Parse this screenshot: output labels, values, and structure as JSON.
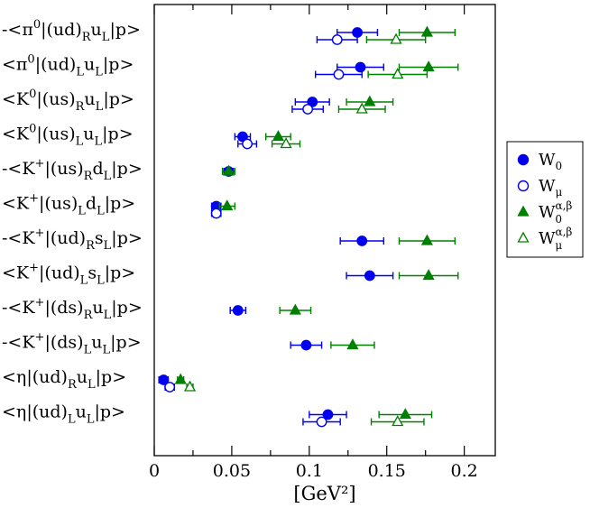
{
  "chart_data": {
    "type": "scatter",
    "title": "",
    "xlabel": "[GeV²]",
    "ylabel": "",
    "xlim": [
      0,
      0.22
    ],
    "x_ticks": [
      0,
      0.05,
      0.1,
      0.15,
      0.2
    ],
    "x_tick_labels": [
      "0",
      "0.05",
      "0.1",
      "0.15",
      "0.2"
    ],
    "legend_position": "right",
    "grid": false,
    "colors": {
      "W0": "#0000ee",
      "Wmu": "#0000ee",
      "W0ab": "#008000",
      "Wmuab": "#008000"
    },
    "rows": [
      {
        "pre": "-<π",
        "sup": "0",
        "mid": "|(ud)",
        "sub": "R",
        "q": "u",
        "qsub": "L",
        "post": "|p>"
      },
      {
        "pre": "<π",
        "sup": "0",
        "mid": "|(ud)",
        "sub": "L",
        "q": "u",
        "qsub": "L",
        "post": "|p>"
      },
      {
        "pre": "<K",
        "sup": "0",
        "mid": "|(us)",
        "sub": "R",
        "q": "u",
        "qsub": "L",
        "post": "|p>"
      },
      {
        "pre": "<K",
        "sup": "0",
        "mid": "|(us)",
        "sub": "L",
        "q": "u",
        "qsub": "L",
        "post": "|p>"
      },
      {
        "pre": "-<K",
        "sup": "+",
        "mid": "|(us)",
        "sub": "R",
        "q": "d",
        "qsub": "L",
        "post": "|p>"
      },
      {
        "pre": "<K",
        "sup": "+",
        "mid": "|(us)",
        "sub": "L",
        "q": "d",
        "qsub": "L",
        "post": "|p>"
      },
      {
        "pre": "-<K",
        "sup": "+",
        "mid": "|(ud)",
        "sub": "R",
        "q": "s",
        "qsub": "L",
        "post": "|p>"
      },
      {
        "pre": "<K",
        "sup": "+",
        "mid": "|(ud)",
        "sub": "L",
        "q": "s",
        "qsub": "L",
        "post": "|p>"
      },
      {
        "pre": "-<K",
        "sup": "+",
        "mid": "|(ds)",
        "sub": "R",
        "q": "u",
        "qsub": "L",
        "post": "|p>"
      },
      {
        "pre": "-<K",
        "sup": "+",
        "mid": "|(ds)",
        "sub": "L",
        "q": "u",
        "qsub": "L",
        "post": "|p>"
      },
      {
        "pre": "<η",
        "sup": "",
        "mid": "|(ud)",
        "sub": "R",
        "q": "u",
        "qsub": "L",
        "post": "|p>"
      },
      {
        "pre": "<η",
        "sup": "",
        "mid": "|(ud)",
        "sub": "L",
        "q": "u",
        "qsub": "L",
        "post": "|p>"
      }
    ],
    "series": [
      {
        "key": "W0",
        "name": "W",
        "sub": "0",
        "sup": "",
        "marker": "circle",
        "filled": true,
        "points": [
          {
            "row": 0,
            "x": 0.131,
            "err": 0.013
          },
          {
            "row": 1,
            "x": 0.133,
            "err": 0.015
          },
          {
            "row": 2,
            "x": 0.102,
            "err": 0.011
          },
          {
            "row": 3,
            "x": 0.057,
            "err": 0.005
          },
          {
            "row": 4,
            "x": 0.048,
            "err": 0.003
          },
          {
            "row": 5,
            "x": 0.04,
            "err": 0.003
          },
          {
            "row": 6,
            "x": 0.134,
            "err": 0.014
          },
          {
            "row": 7,
            "x": 0.139,
            "err": 0.015
          },
          {
            "row": 8,
            "x": 0.054,
            "err": 0.005
          },
          {
            "row": 9,
            "x": 0.098,
            "err": 0.01
          },
          {
            "row": 10,
            "x": 0.006,
            "err": 0.003
          },
          {
            "row": 11,
            "x": 0.112,
            "err": 0.012
          }
        ]
      },
      {
        "key": "Wmu",
        "name": "W",
        "sub": "μ",
        "sup": "",
        "marker": "circle",
        "filled": false,
        "points": [
          {
            "row": 0,
            "x": 0.118,
            "err": 0.013
          },
          {
            "row": 1,
            "x": 0.119,
            "err": 0.015
          },
          {
            "row": 2,
            "x": 0.099,
            "err": 0.01
          },
          {
            "row": 3,
            "x": 0.06,
            "err": 0.006
          },
          {
            "row": 5,
            "x": 0.04,
            "err": 0.003
          },
          {
            "row": 10,
            "x": 0.01,
            "err": 0.003
          },
          {
            "row": 11,
            "x": 0.108,
            "err": 0.012
          }
        ]
      },
      {
        "key": "W0ab",
        "name": "W",
        "sub": "0",
        "sup": "α,β",
        "marker": "triangle",
        "filled": true,
        "points": [
          {
            "row": 0,
            "x": 0.176,
            "err": 0.018
          },
          {
            "row": 1,
            "x": 0.177,
            "err": 0.019
          },
          {
            "row": 2,
            "x": 0.139,
            "err": 0.015
          },
          {
            "row": 3,
            "x": 0.08,
            "err": 0.008
          },
          {
            "row": 4,
            "x": 0.048,
            "err": 0.004
          },
          {
            "row": 5,
            "x": 0.047,
            "err": 0.005
          },
          {
            "row": 6,
            "x": 0.176,
            "err": 0.018
          },
          {
            "row": 7,
            "x": 0.177,
            "err": 0.019
          },
          {
            "row": 8,
            "x": 0.091,
            "err": 0.01
          },
          {
            "row": 9,
            "x": 0.128,
            "err": 0.014
          },
          {
            "row": 10,
            "x": 0.017,
            "err": 0.002
          },
          {
            "row": 11,
            "x": 0.162,
            "err": 0.017
          }
        ]
      },
      {
        "key": "Wmuab",
        "name": "W",
        "sub": "μ",
        "sup": "α,β",
        "marker": "triangle",
        "filled": false,
        "points": [
          {
            "row": 0,
            "x": 0.156,
            "err": 0.019
          },
          {
            "row": 1,
            "x": 0.157,
            "err": 0.019
          },
          {
            "row": 2,
            "x": 0.134,
            "err": 0.015
          },
          {
            "row": 3,
            "x": 0.085,
            "err": 0.009
          },
          {
            "row": 10,
            "x": 0.023,
            "err": 0.002
          },
          {
            "row": 11,
            "x": 0.157,
            "err": 0.017
          }
        ]
      }
    ]
  }
}
